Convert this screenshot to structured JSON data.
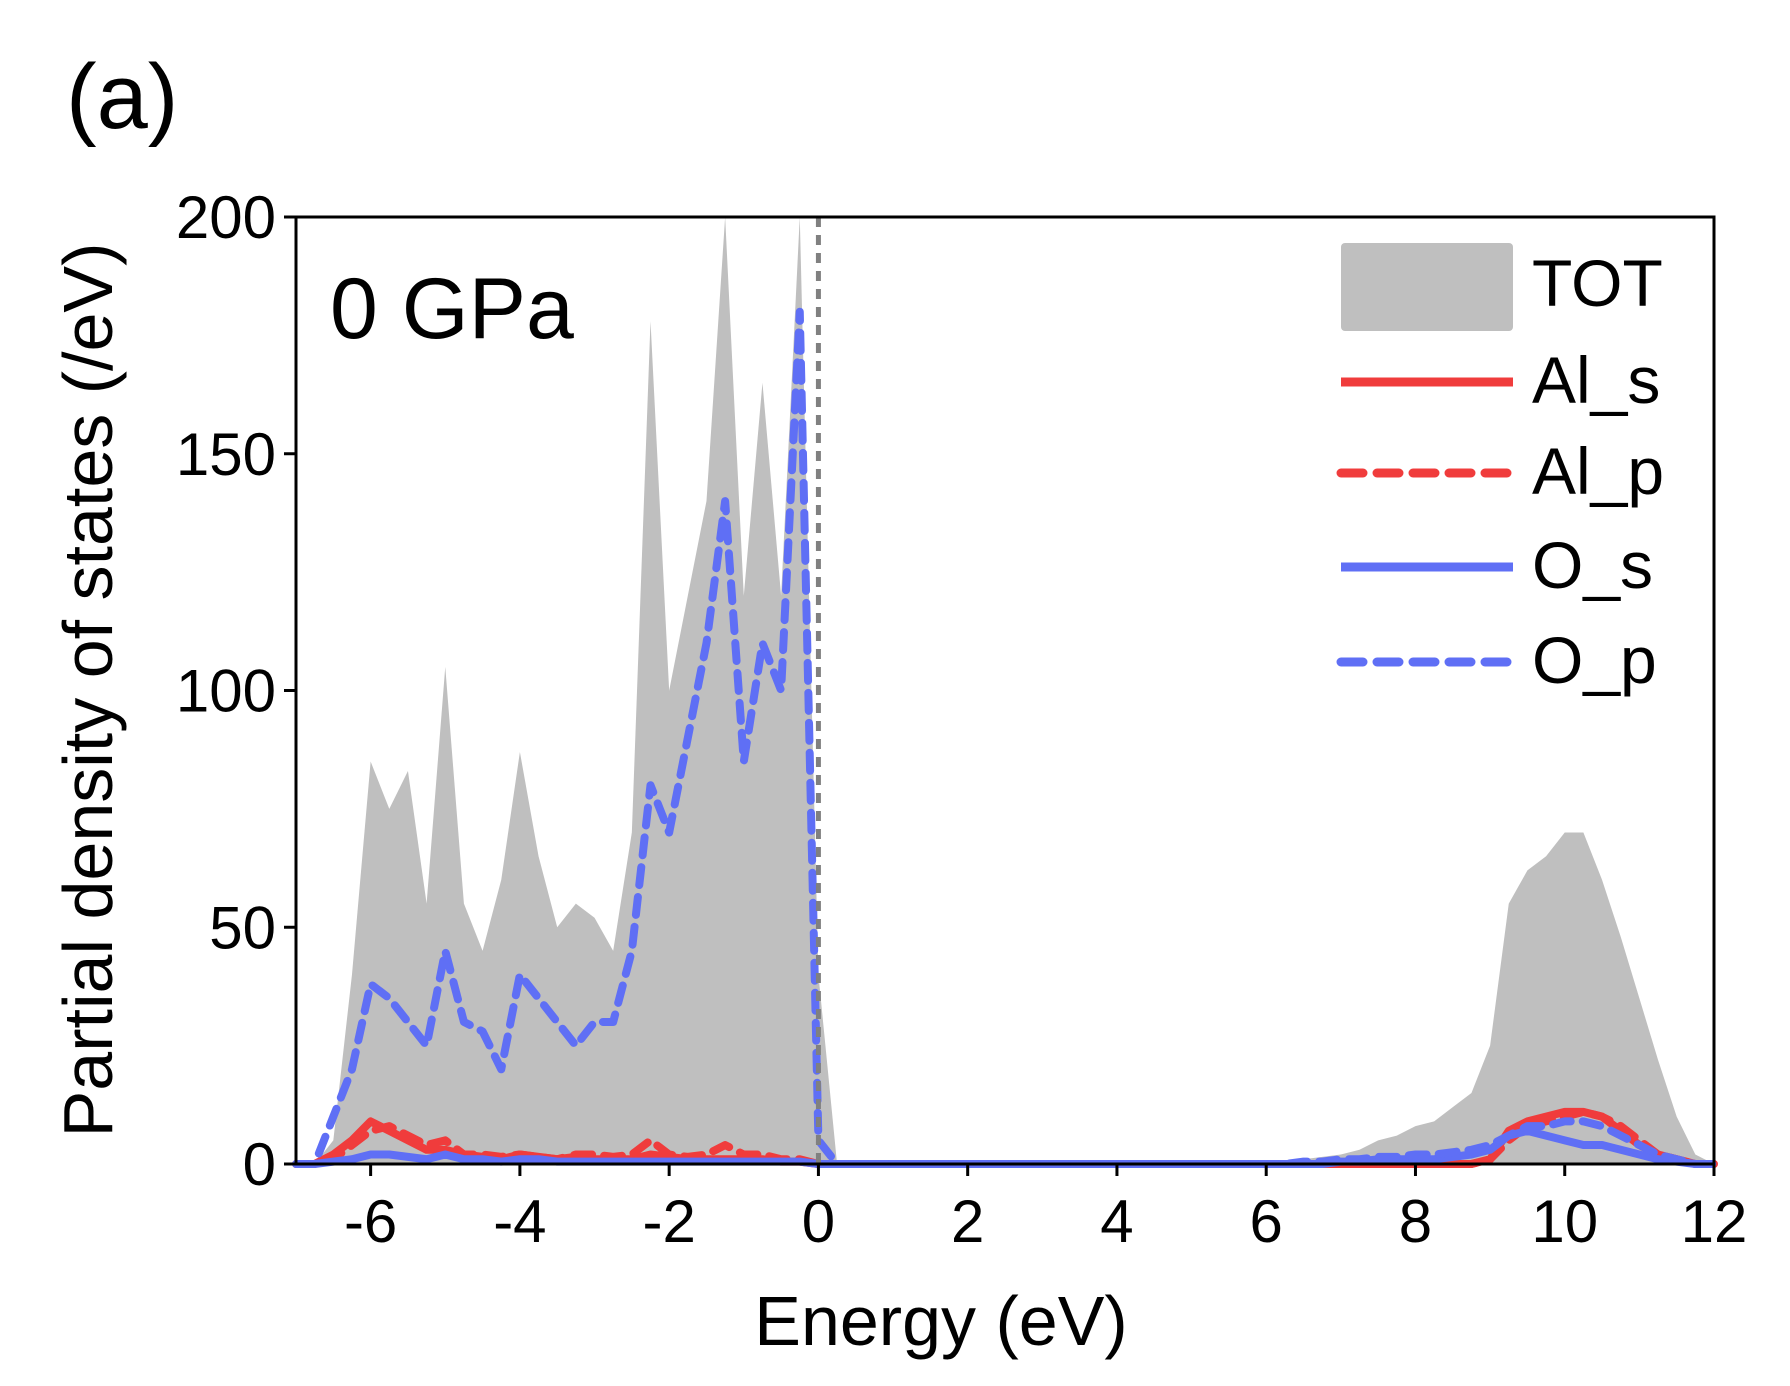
{
  "chart_data": {
    "type": "dos",
    "panel_label": "(a)",
    "annotation": "0 GPa",
    "x_label": "Energy (eV)",
    "y_label": "Partial density of states (/eV)",
    "xlim": [
      -7,
      12
    ],
    "ylim": [
      0,
      200
    ],
    "xticks": [
      -6,
      -4,
      -2,
      0,
      2,
      4,
      6,
      8,
      10,
      12
    ],
    "yticks": [
      0,
      50,
      100,
      150,
      200
    ],
    "vline_x": 0,
    "legend": "upper right",
    "x": [
      -7,
      -6.75,
      -6.5,
      -6.25,
      -6,
      -5.75,
      -5.5,
      -5.25,
      -5,
      -4.75,
      -4.5,
      -4.25,
      -4,
      -3.75,
      -3.5,
      -3.25,
      -3,
      -2.75,
      -2.5,
      -2.25,
      -2,
      -1.75,
      -1.5,
      -1.25,
      -1,
      -0.75,
      -0.5,
      -0.25,
      0,
      0.25,
      0.5,
      0.75,
      1,
      1.25,
      1.5,
      1.75,
      2,
      2.25,
      2.5,
      2.75,
      3,
      3.25,
      3.5,
      3.75,
      4,
      4.25,
      4.5,
      4.75,
      5,
      5.25,
      5.5,
      5.75,
      6,
      6.25,
      6.5,
      6.75,
      7,
      7.25,
      7.5,
      7.75,
      8,
      8.25,
      8.5,
      8.75,
      9,
      9.25,
      9.5,
      9.75,
      10,
      10.25,
      10.5,
      10.75,
      11,
      11.25,
      11.5,
      11.75,
      12
    ],
    "series": [
      {
        "name": "TOT",
        "kind": "area",
        "color": "#bfbfbf",
        "values": [
          0,
          0,
          5,
          40,
          85,
          75,
          83,
          55,
          105,
          55,
          45,
          60,
          87,
          65,
          50,
          55,
          52,
          45,
          70,
          178,
          100,
          120,
          140,
          200,
          120,
          165,
          120,
          200,
          40,
          0,
          0,
          0,
          0,
          0,
          0,
          0,
          0,
          0,
          0,
          0,
          0,
          0,
          0,
          0,
          0,
          0,
          0,
          0,
          0,
          0,
          0,
          0,
          0,
          0.5,
          1,
          1.5,
          2,
          3,
          5,
          6,
          8,
          9,
          12,
          15,
          25,
          55,
          62,
          65,
          70,
          70,
          60,
          48,
          35,
          22,
          10,
          2,
          0
        ]
      },
      {
        "name": "Al_s",
        "kind": "line",
        "style": "solid",
        "color": "#f03c3c",
        "values": [
          0,
          0,
          2,
          5,
          9,
          7,
          5,
          3,
          3,
          2,
          1.5,
          1,
          2,
          1.5,
          1,
          1.5,
          1,
          1,
          1,
          2,
          1.5,
          1,
          1,
          1,
          1,
          1,
          0.5,
          0.5,
          0,
          0,
          0,
          0,
          0,
          0,
          0,
          0,
          0,
          0,
          0,
          0,
          0,
          0,
          0,
          0,
          0,
          0,
          0,
          0,
          0,
          0,
          0,
          0,
          0,
          0,
          0,
          0,
          0,
          0,
          0,
          0,
          0,
          0,
          0,
          0,
          1,
          7,
          9,
          10,
          11,
          11,
          10,
          7,
          4,
          2,
          1,
          0,
          0
        ]
      },
      {
        "name": "Al_p",
        "kind": "line",
        "style": "dashed",
        "color": "#f03c3c",
        "values": [
          0,
          0,
          1,
          4,
          7,
          8,
          6,
          4,
          5,
          2,
          2,
          1.5,
          2,
          1.5,
          1,
          2,
          2,
          1.5,
          2,
          5,
          2,
          1.5,
          2,
          4,
          2,
          2,
          1,
          1,
          0,
          0,
          0,
          0,
          0,
          0,
          0,
          0,
          0,
          0,
          0,
          0,
          0,
          0,
          0,
          0,
          0,
          0,
          0,
          0,
          0,
          0,
          0,
          0,
          0,
          0,
          0,
          0,
          0,
          0,
          0,
          0,
          0,
          0,
          0,
          0,
          1,
          5,
          8,
          9,
          10,
          11,
          10,
          8,
          5,
          2,
          1,
          0,
          0
        ]
      },
      {
        "name": "O_s",
        "kind": "line",
        "style": "solid",
        "color": "#5f6ff5",
        "values": [
          0,
          0,
          0.5,
          1,
          2,
          2,
          1.5,
          1,
          2,
          1,
          1,
          0.5,
          1,
          1,
          0.5,
          0.5,
          0.5,
          0.5,
          0.5,
          0.5,
          0.5,
          0.5,
          0.5,
          0.5,
          0.5,
          0.5,
          0.5,
          0.5,
          0,
          0,
          0,
          0,
          0,
          0,
          0,
          0,
          0,
          0,
          0,
          0,
          0,
          0,
          0,
          0,
          0,
          0,
          0,
          0,
          0,
          0,
          0,
          0,
          0,
          0,
          0,
          0,
          0.5,
          0.5,
          1,
          1,
          1,
          1,
          1.5,
          2,
          3,
          6,
          7,
          6,
          5,
          4,
          4,
          3,
          2,
          1,
          0.5,
          0,
          0
        ]
      },
      {
        "name": "O_p",
        "kind": "line",
        "style": "dashed",
        "color": "#5f6ff5",
        "values": [
          0,
          0,
          10,
          20,
          38,
          35,
          30,
          25,
          45,
          30,
          28,
          20,
          40,
          35,
          30,
          25,
          30,
          30,
          45,
          80,
          70,
          90,
          110,
          140,
          85,
          110,
          100,
          180,
          5,
          0,
          0,
          0,
          0,
          0,
          0,
          0,
          0,
          0,
          0,
          0,
          0,
          0,
          0,
          0,
          0,
          0,
          0,
          0,
          0,
          0,
          0,
          0,
          0,
          0,
          0.5,
          0.5,
          1,
          1,
          1.5,
          1.5,
          2,
          2,
          2.5,
          3,
          4,
          6,
          8,
          8,
          9,
          9,
          8,
          6,
          4,
          2,
          1,
          0,
          0
        ]
      }
    ]
  }
}
